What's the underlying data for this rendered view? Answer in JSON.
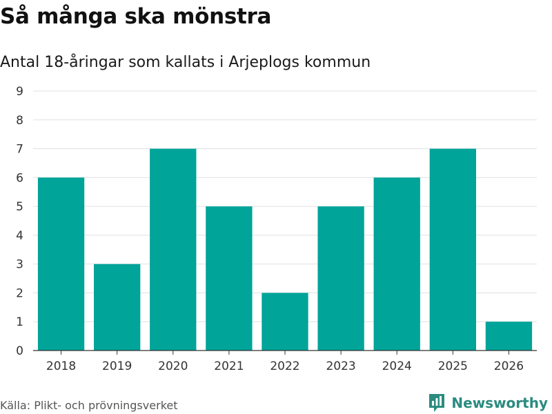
{
  "title": "Så många ska mönstra",
  "subtitle": "Antal 18-åringar som kallats i Arjeplogs kommun",
  "source": "Källa: Plikt- och prövningsverket",
  "logo": {
    "text": "Newsworthy",
    "icon": "newsworthy-bar-icon"
  },
  "colors": {
    "bar": "#00a499",
    "grid": "#e0e0e0",
    "axis": "#333333",
    "brand": "#2a8b7f"
  },
  "chart_data": {
    "type": "bar",
    "title": "Så många ska mönstra",
    "subtitle": "Antal 18-åringar som kallats i Arjeplogs kommun",
    "xlabel": "",
    "ylabel": "",
    "categories": [
      "2018",
      "2019",
      "2020",
      "2021",
      "2022",
      "2023",
      "2024",
      "2025",
      "2026"
    ],
    "values": [
      6,
      3,
      7,
      5,
      2,
      5,
      6,
      7,
      1
    ],
    "ylim": [
      0,
      9
    ],
    "yticks": [
      0,
      1,
      2,
      3,
      4,
      5,
      6,
      7,
      8,
      9
    ],
    "grid": true,
    "legend": "none"
  }
}
